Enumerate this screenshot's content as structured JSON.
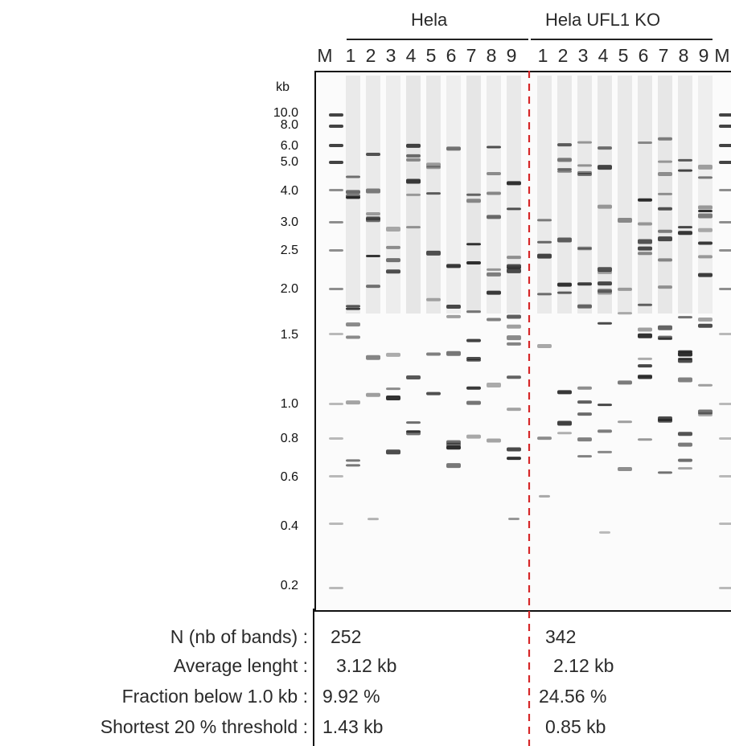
{
  "groups": [
    {
      "label": "Hela"
    },
    {
      "label": "Hela UFL1 KO"
    }
  ],
  "lane_labels": [
    "M",
    "1",
    "2",
    "3",
    "4",
    "5",
    "6",
    "7",
    "8",
    "9",
    "1",
    "2",
    "3",
    "4",
    "5",
    "6",
    "7",
    "8",
    "9",
    "M"
  ],
  "marker_unit": "kb",
  "markers": [
    "10.0",
    "8.0",
    "6.0",
    "5.0",
    "4.0",
    "3.0",
    "2.5",
    "2.0",
    "1.5",
    "1.0",
    "0.8",
    "0.6",
    "0.4",
    "0.2"
  ],
  "stats": {
    "labels": [
      "N (nb of bands) :",
      "Average lenght :",
      "Fraction below 1.0 kb :",
      "Shortest 20 % threshold :"
    ],
    "hela": [
      "252",
      "3.12 kb",
      "9.92 %",
      "1.43 kb"
    ],
    "ko": [
      "342",
      "2.12 kb",
      "24.56 %",
      "0.85 kb"
    ]
  },
  "colors": {
    "divider": "#d62728",
    "band": "#222222",
    "frame": "#111111"
  }
}
